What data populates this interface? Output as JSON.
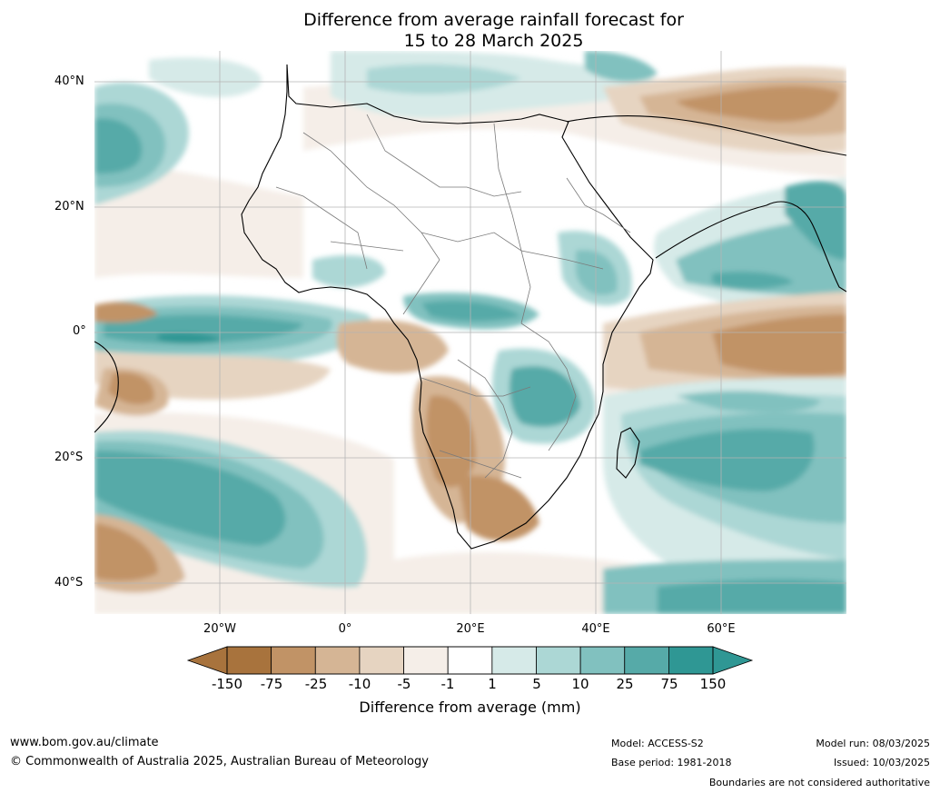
{
  "title_line1": "Difference from average rainfall forecast for",
  "title_line2": "15 to 28 March 2025",
  "lat_labels": [
    "40°N",
    "20°N",
    "0°",
    "20°S",
    "40°S"
  ],
  "lon_labels": [
    "20°W",
    "0°",
    "20°E",
    "40°E",
    "60°E"
  ],
  "colorbar": {
    "label": "Difference from average (mm)",
    "ticks": [
      "-150",
      "-75",
      "-25",
      "-10",
      "-5",
      "-1",
      "1",
      "5",
      "10",
      "25",
      "75",
      "150"
    ],
    "colors": [
      "#a8733d",
      "#c19366",
      "#d5b595",
      "#e6d4c1",
      "#f5eee8",
      "#ffffff",
      "#d6eae8",
      "#acd7d5",
      "#81c1bf",
      "#56aaa8",
      "#2f9794",
      "#2f9794"
    ]
  },
  "footer": {
    "url": "www.bom.gov.au/climate",
    "copyright": "© Commonwealth of Australia 2025, Australian Bureau of Meteorology",
    "model": "Model: ACCESS-S2",
    "base_period": "Base period: 1981-2018",
    "model_run": "Model run: 08/03/2025",
    "issued": "Issued: 10/03/2025",
    "disclaimer": "Boundaries are not considered authoritative"
  }
}
